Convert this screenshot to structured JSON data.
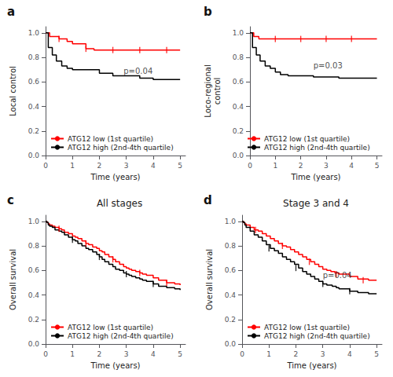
{
  "chart_data": [
    {
      "type": "line",
      "panel_label": "a",
      "ylabel": "Local control",
      "xlabel": "Time (years)",
      "annotations": [
        {
          "text": "p=0.04",
          "x": 2.9,
          "y": 0.69
        }
      ],
      "series": [
        {
          "name": "ATG12 low (1st quartile)",
          "color": "#FF0000",
          "line_style": "step",
          "x": [
            0,
            0.15,
            0.15,
            0.5,
            0.5,
            0.8,
            0.8,
            1.0,
            1.0,
            1.5,
            1.5,
            1.8,
            1.8,
            2.0,
            2.0,
            5.0
          ],
          "values": [
            1.0,
            1.0,
            0.97,
            0.97,
            0.95,
            0.95,
            0.93,
            0.93,
            0.91,
            0.91,
            0.87,
            0.87,
            0.86,
            0.86,
            0.86,
            0.86
          ],
          "censor_x": [
            0.5,
            1.5,
            2.5,
            3.5,
            4.5
          ],
          "censor_y": [
            0.95,
            0.87,
            0.86,
            0.86,
            0.86
          ]
        },
        {
          "name": "ATG12 high (2nd-4th quartile)",
          "color": "#000000",
          "line_style": "step",
          "x": [
            0,
            0.1,
            0.1,
            0.25,
            0.25,
            0.4,
            0.4,
            0.6,
            0.6,
            0.8,
            0.8,
            1.0,
            1.0,
            1.3,
            1.3,
            2.0,
            2.0,
            2.5,
            2.5,
            3.5,
            3.5,
            4.0,
            4.0,
            5.0
          ],
          "values": [
            1.0,
            1.0,
            0.88,
            0.88,
            0.82,
            0.82,
            0.77,
            0.77,
            0.73,
            0.73,
            0.71,
            0.71,
            0.7,
            0.7,
            0.7,
            0.7,
            0.67,
            0.67,
            0.65,
            0.65,
            0.63,
            0.63,
            0.62,
            0.62
          ]
        }
      ],
      "xlim": [
        0,
        5.2
      ],
      "xticks": [
        0,
        1,
        2,
        3,
        4,
        5
      ],
      "ylim": [
        0,
        1.05
      ],
      "yticks": [
        {
          "value": 0,
          "label": "0.0"
        },
        0.2,
        0.4,
        0.6,
        0.8,
        {
          "value": 1,
          "label": "1.0"
        }
      ],
      "grid": false,
      "legend": "lower left"
    },
    {
      "type": "line",
      "panel_label": "b",
      "ylabel": "Loco-regional\ncontrol",
      "xlabel": "Time (years)",
      "annotations": [
        {
          "text": "p=0.03",
          "x": 2.5,
          "y": 0.73
        }
      ],
      "series": [
        {
          "name": "ATG12 low (1st quartile)",
          "color": "#FF0000",
          "line_style": "step",
          "x": [
            0,
            0.15,
            0.15,
            0.35,
            0.35,
            5.0
          ],
          "values": [
            1.0,
            1.0,
            0.97,
            0.97,
            0.95,
            0.95
          ],
          "censor_x": [
            1.0,
            2.0,
            3.0,
            4.0
          ],
          "censor_y": [
            0.95,
            0.95,
            0.95,
            0.95
          ]
        },
        {
          "name": "ATG12 high (2nd-4th quartile)",
          "color": "#000000",
          "line_style": "step",
          "x": [
            0,
            0.1,
            0.1,
            0.25,
            0.25,
            0.4,
            0.4,
            0.6,
            0.6,
            0.8,
            0.8,
            1.0,
            1.0,
            1.2,
            1.2,
            1.5,
            1.5,
            2.5,
            2.5,
            3.5,
            3.5,
            5.0
          ],
          "values": [
            1.0,
            1.0,
            0.88,
            0.88,
            0.82,
            0.82,
            0.77,
            0.77,
            0.73,
            0.73,
            0.71,
            0.71,
            0.68,
            0.68,
            0.66,
            0.66,
            0.65,
            0.65,
            0.64,
            0.64,
            0.63,
            0.63
          ]
        }
      ],
      "xlim": [
        0,
        5.2
      ],
      "xticks": [
        0,
        1,
        2,
        3,
        4,
        5
      ],
      "ylim": [
        0,
        1.05
      ],
      "yticks": [
        {
          "value": 0,
          "label": "0.0"
        },
        0.2,
        0.4,
        0.6,
        0.8,
        {
          "value": 1,
          "label": "1.0"
        }
      ],
      "grid": false,
      "legend": "lower left"
    },
    {
      "type": "line",
      "panel_label": "c",
      "title": "All stages",
      "ylabel": "Overall survival",
      "xlabel": "Time (years)",
      "series": [
        {
          "name": "ATG12 low (1st quartile)",
          "color": "#FF0000",
          "line_style": "step",
          "x": [
            0,
            0.05,
            0.1,
            0.15,
            0.25,
            0.35,
            0.5,
            0.6,
            0.7,
            0.85,
            1.0,
            1.1,
            1.2,
            1.35,
            1.5,
            1.6,
            1.75,
            1.9,
            2.0,
            2.1,
            2.2,
            2.35,
            2.5,
            2.6,
            2.75,
            2.9,
            3.0,
            3.1,
            3.2,
            3.35,
            3.5,
            3.6,
            3.75,
            4.0,
            4.2,
            4.5,
            4.8,
            5.0
          ],
          "values": [
            1.0,
            0.99,
            0.98,
            0.97,
            0.96,
            0.95,
            0.94,
            0.93,
            0.91,
            0.9,
            0.88,
            0.87,
            0.86,
            0.84,
            0.82,
            0.81,
            0.79,
            0.78,
            0.76,
            0.75,
            0.73,
            0.71,
            0.69,
            0.67,
            0.65,
            0.63,
            0.62,
            0.61,
            0.6,
            0.59,
            0.58,
            0.57,
            0.56,
            0.54,
            0.52,
            0.5,
            0.49,
            0.48
          ],
          "censor_x": [
            0.5,
            1.5,
            2.5,
            3.5,
            4.5
          ],
          "censor_y": [
            0.94,
            0.82,
            0.69,
            0.58,
            0.5
          ]
        },
        {
          "name": "ATG12 high (2nd-4th quartile)",
          "color": "#000000",
          "line_style": "step",
          "x": [
            0,
            0.05,
            0.1,
            0.15,
            0.25,
            0.35,
            0.5,
            0.6,
            0.7,
            0.85,
            1.0,
            1.1,
            1.2,
            1.35,
            1.5,
            1.6,
            1.75,
            1.9,
            2.0,
            2.1,
            2.2,
            2.35,
            2.5,
            2.6,
            2.75,
            2.9,
            3.0,
            3.1,
            3.2,
            3.35,
            3.5,
            3.6,
            3.75,
            4.0,
            4.2,
            4.5,
            4.8,
            5.0
          ],
          "values": [
            1.0,
            0.99,
            0.97,
            0.96,
            0.95,
            0.93,
            0.92,
            0.91,
            0.89,
            0.87,
            0.85,
            0.84,
            0.82,
            0.8,
            0.78,
            0.77,
            0.75,
            0.73,
            0.71,
            0.69,
            0.67,
            0.65,
            0.63,
            0.61,
            0.6,
            0.58,
            0.57,
            0.56,
            0.55,
            0.54,
            0.53,
            0.52,
            0.51,
            0.49,
            0.47,
            0.46,
            0.45,
            0.44
          ],
          "censor_x": [
            1.0,
            2.0,
            3.0,
            4.0
          ],
          "censor_y": [
            0.85,
            0.71,
            0.57,
            0.49
          ]
        }
      ],
      "xlim": [
        0,
        5.2
      ],
      "xticks": [
        0,
        1,
        2,
        3,
        4,
        5
      ],
      "ylim": [
        0,
        1.05
      ],
      "yticks": [
        {
          "value": 0,
          "label": "0.0"
        },
        0.2,
        0.4,
        0.6,
        0.8,
        {
          "value": 1,
          "label": "1.0"
        }
      ],
      "grid": false,
      "legend": "lower left"
    },
    {
      "type": "line",
      "panel_label": "d",
      "title": "Stage 3 and 4",
      "ylabel": "Overall survival",
      "xlabel": "Time (years)",
      "annotations": [
        {
          "text": "p=0.04",
          "x": 3.0,
          "y": 0.56
        }
      ],
      "series": [
        {
          "name": "ATG12 low (1st quartile)",
          "color": "#FF0000",
          "line_style": "step",
          "x": [
            0,
            0.05,
            0.1,
            0.15,
            0.3,
            0.45,
            0.6,
            0.75,
            0.9,
            1.05,
            1.2,
            1.35,
            1.5,
            1.65,
            1.8,
            1.95,
            2.1,
            2.25,
            2.4,
            2.55,
            2.7,
            2.85,
            3.0,
            3.15,
            3.3,
            3.45,
            3.6,
            4.0,
            4.3,
            4.7,
            5.0
          ],
          "values": [
            1.0,
            0.99,
            0.98,
            0.97,
            0.95,
            0.93,
            0.92,
            0.9,
            0.88,
            0.86,
            0.84,
            0.82,
            0.8,
            0.79,
            0.77,
            0.75,
            0.73,
            0.71,
            0.69,
            0.67,
            0.65,
            0.63,
            0.61,
            0.6,
            0.59,
            0.58,
            0.57,
            0.55,
            0.53,
            0.52,
            0.52
          ],
          "censor_x": [
            0.5,
            1.5,
            2.5,
            3.5,
            4.5
          ],
          "censor_y": [
            0.93,
            0.8,
            0.67,
            0.57,
            0.52
          ]
        },
        {
          "name": "ATG12 high (2nd-4th quartile)",
          "color": "#000000",
          "line_style": "step",
          "x": [
            0,
            0.05,
            0.1,
            0.15,
            0.3,
            0.45,
            0.6,
            0.75,
            0.9,
            1.05,
            1.2,
            1.35,
            1.5,
            1.65,
            1.8,
            1.95,
            2.1,
            2.25,
            2.4,
            2.55,
            2.7,
            2.85,
            3.0,
            3.15,
            3.35,
            3.5,
            3.6,
            3.7,
            4.0,
            4.3,
            4.7,
            5.0
          ],
          "values": [
            1.0,
            0.99,
            0.97,
            0.95,
            0.92,
            0.89,
            0.87,
            0.84,
            0.81,
            0.78,
            0.76,
            0.74,
            0.71,
            0.69,
            0.67,
            0.65,
            0.62,
            0.59,
            0.57,
            0.55,
            0.53,
            0.51,
            0.49,
            0.48,
            0.47,
            0.46,
            0.45,
            0.45,
            0.43,
            0.42,
            0.41,
            0.41
          ],
          "censor_x": [
            1.0,
            2.0,
            3.0,
            4.0
          ],
          "censor_y": [
            0.78,
            0.62,
            0.49,
            0.43
          ]
        }
      ],
      "xlim": [
        0,
        5.2
      ],
      "xticks": [
        0,
        1,
        2,
        3,
        4,
        5
      ],
      "ylim": [
        0,
        1.05
      ],
      "yticks": [
        {
          "value": 0,
          "label": "0.0"
        },
        0.2,
        0.4,
        0.6,
        0.8,
        {
          "value": 1,
          "label": "1.0"
        }
      ],
      "grid": false,
      "legend": "lower left"
    }
  ]
}
